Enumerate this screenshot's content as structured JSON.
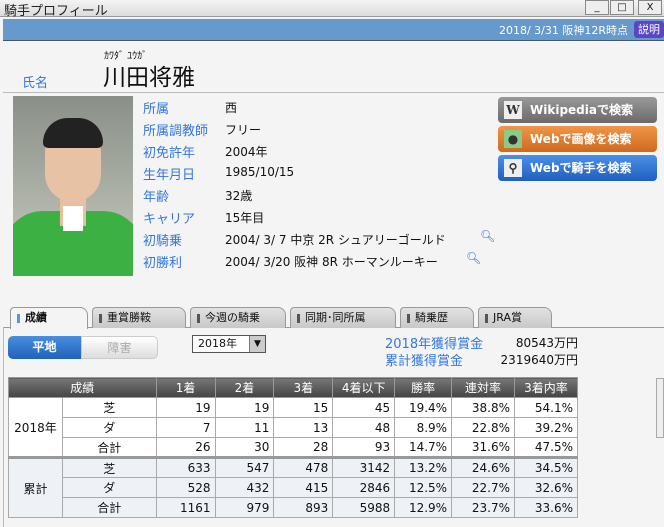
{
  "window": {
    "title": "騎手プロフィール",
    "min": "_",
    "max": "□",
    "close": "X"
  },
  "header": {
    "as_of": "2018/ 3/31 阪神12R時点",
    "help": "説明"
  },
  "jockey": {
    "name_label": "氏名",
    "kana": "ｶﾜﾀﾞ ﾕｳｶﾞ",
    "name": "川田将雅"
  },
  "profile": [
    {
      "label": "所属",
      "value": "西"
    },
    {
      "label": "所属調教師",
      "value": "フリー"
    },
    {
      "label": "初免許年",
      "value": "2004年"
    },
    {
      "label": "生年月日",
      "value": "1985/10/15"
    },
    {
      "label": "年齢",
      "value": "32歳"
    },
    {
      "label": "キャリア",
      "value": "15年目"
    },
    {
      "label": "初騎乗",
      "value": "2004/ 3/ 7 中京 2R シュアリーゴールド"
    },
    {
      "label": "初勝利",
      "value": "2004/ 3/20 阪神 8R ホーマンルーキー"
    }
  ],
  "search_buttons": [
    {
      "label": "Wikipediaで検索",
      "icon": "wikipedia-icon",
      "color": "#7a7a7a"
    },
    {
      "label": "Webで画像を検索",
      "icon": "person-icon",
      "color": "#e07a2a"
    },
    {
      "label": "Webで騎手を検索",
      "icon": "magnifier-icon",
      "color": "#2a72d0"
    }
  ],
  "tabs": [
    "成績",
    "重賞勝鞍",
    "今週の騎乗",
    "同期･同所属",
    "騎乗歴",
    "JRA賞"
  ],
  "active_tab": "成績",
  "surface_toggle": {
    "options": [
      "平地",
      "障害"
    ],
    "selected": "平地"
  },
  "year_select": "2018年",
  "prize": [
    {
      "label": "2018年獲得賞金",
      "value": "80543万円"
    },
    {
      "label": "累計獲得賞金",
      "value": "2319640万円"
    }
  ],
  "table": {
    "headers": [
      "成績",
      "1着",
      "2着",
      "3着",
      "4着以下",
      "勝率",
      "連対率",
      "3着内率"
    ],
    "groups": [
      {
        "name": "2018年",
        "rows": [
          [
            "芝",
            "19",
            "19",
            "15",
            "45",
            "19.4%",
            "38.8%",
            "54.1%"
          ],
          [
            "ダ",
            "7",
            "11",
            "13",
            "48",
            "8.9%",
            "22.8%",
            "39.2%"
          ],
          [
            "合計",
            "26",
            "30",
            "28",
            "93",
            "14.7%",
            "31.6%",
            "47.5%"
          ]
        ]
      },
      {
        "name": "累計",
        "rows": [
          [
            "芝",
            "633",
            "547",
            "478",
            "3142",
            "13.2%",
            "24.6%",
            "34.5%"
          ],
          [
            "ダ",
            "528",
            "432",
            "415",
            "2846",
            "12.5%",
            "22.7%",
            "32.6%"
          ],
          [
            "合計",
            "1161",
            "979",
            "893",
            "5988",
            "12.9%",
            "23.7%",
            "33.6%"
          ]
        ]
      }
    ]
  }
}
